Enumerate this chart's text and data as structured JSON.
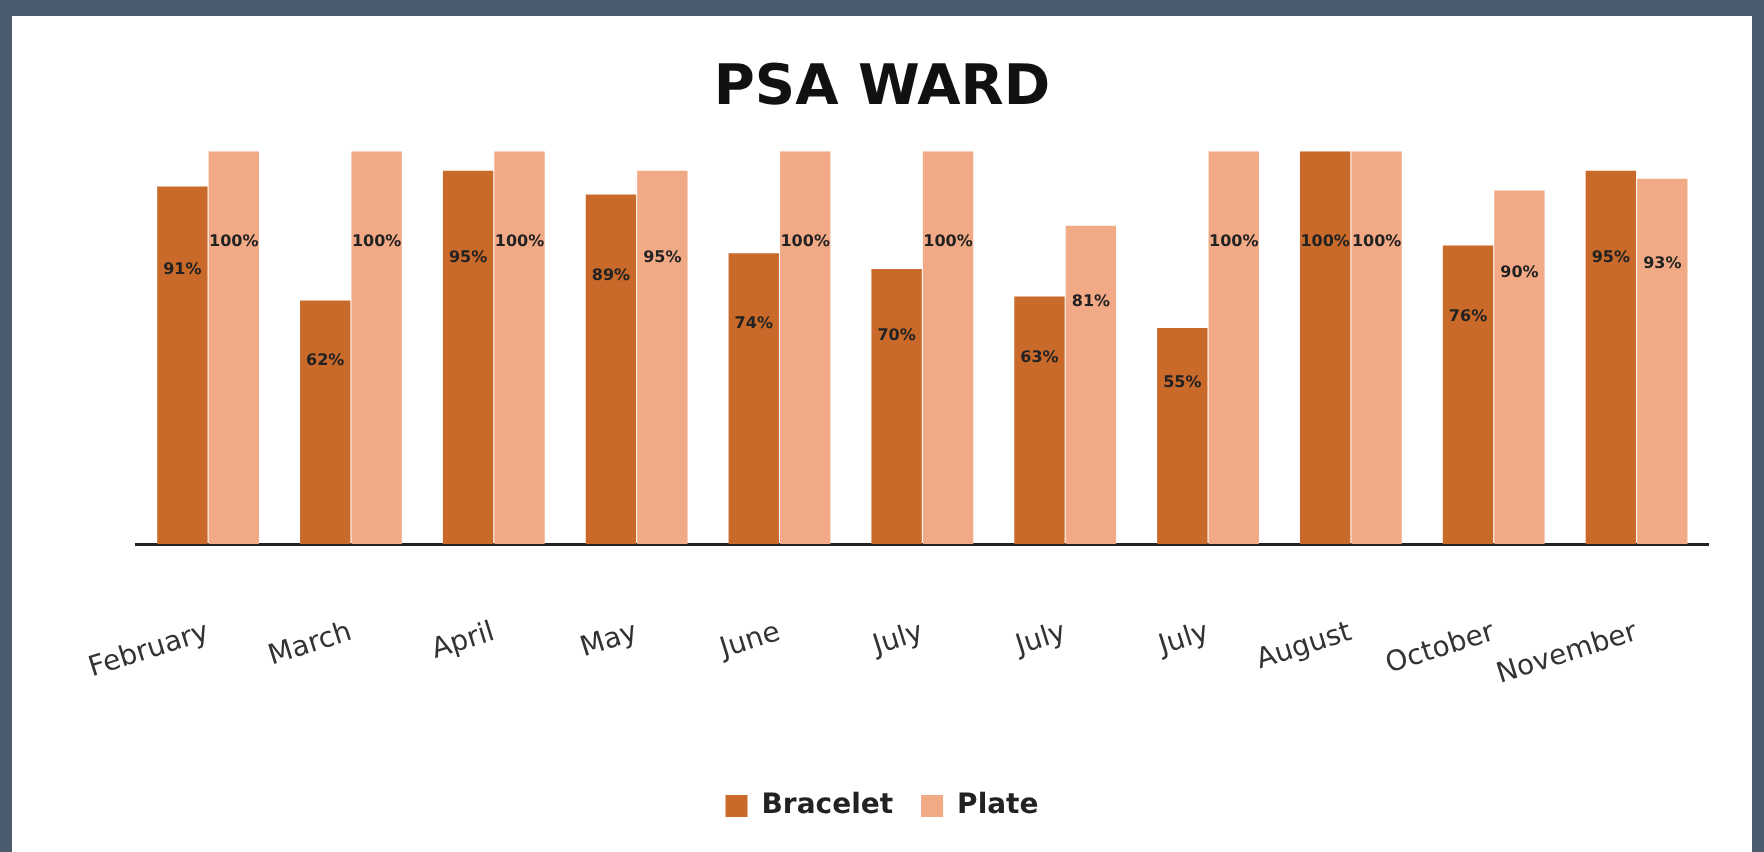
{
  "chart_data": {
    "type": "bar",
    "title": "PSA WARD",
    "categories": [
      "February",
      "March",
      "April",
      "May",
      "June",
      "July",
      "July",
      "July",
      "August",
      "October",
      "November"
    ],
    "series": [
      {
        "name": "Bracelet",
        "color": "#c96a2b",
        "values": [
          91,
          62,
          95,
          89,
          74,
          70,
          63,
          55,
          100,
          76,
          95
        ],
        "value_labels": [
          "91%",
          "62%",
          "95%",
          "89%",
          "74%",
          "70%",
          "63%",
          "55%",
          "100%",
          "76%",
          "95%"
        ]
      },
      {
        "name": "Plate",
        "color": "#f2aa86",
        "values": [
          100,
          100,
          100,
          95,
          100,
          100,
          81,
          100,
          100,
          90,
          93
        ],
        "value_labels": [
          "100%",
          "100%",
          "100%",
          "95%",
          "100%",
          "100%",
          "81%",
          "100%",
          "100%",
          "90%",
          "93%"
        ]
      }
    ],
    "legend": "bottom",
    "grid": false
  }
}
